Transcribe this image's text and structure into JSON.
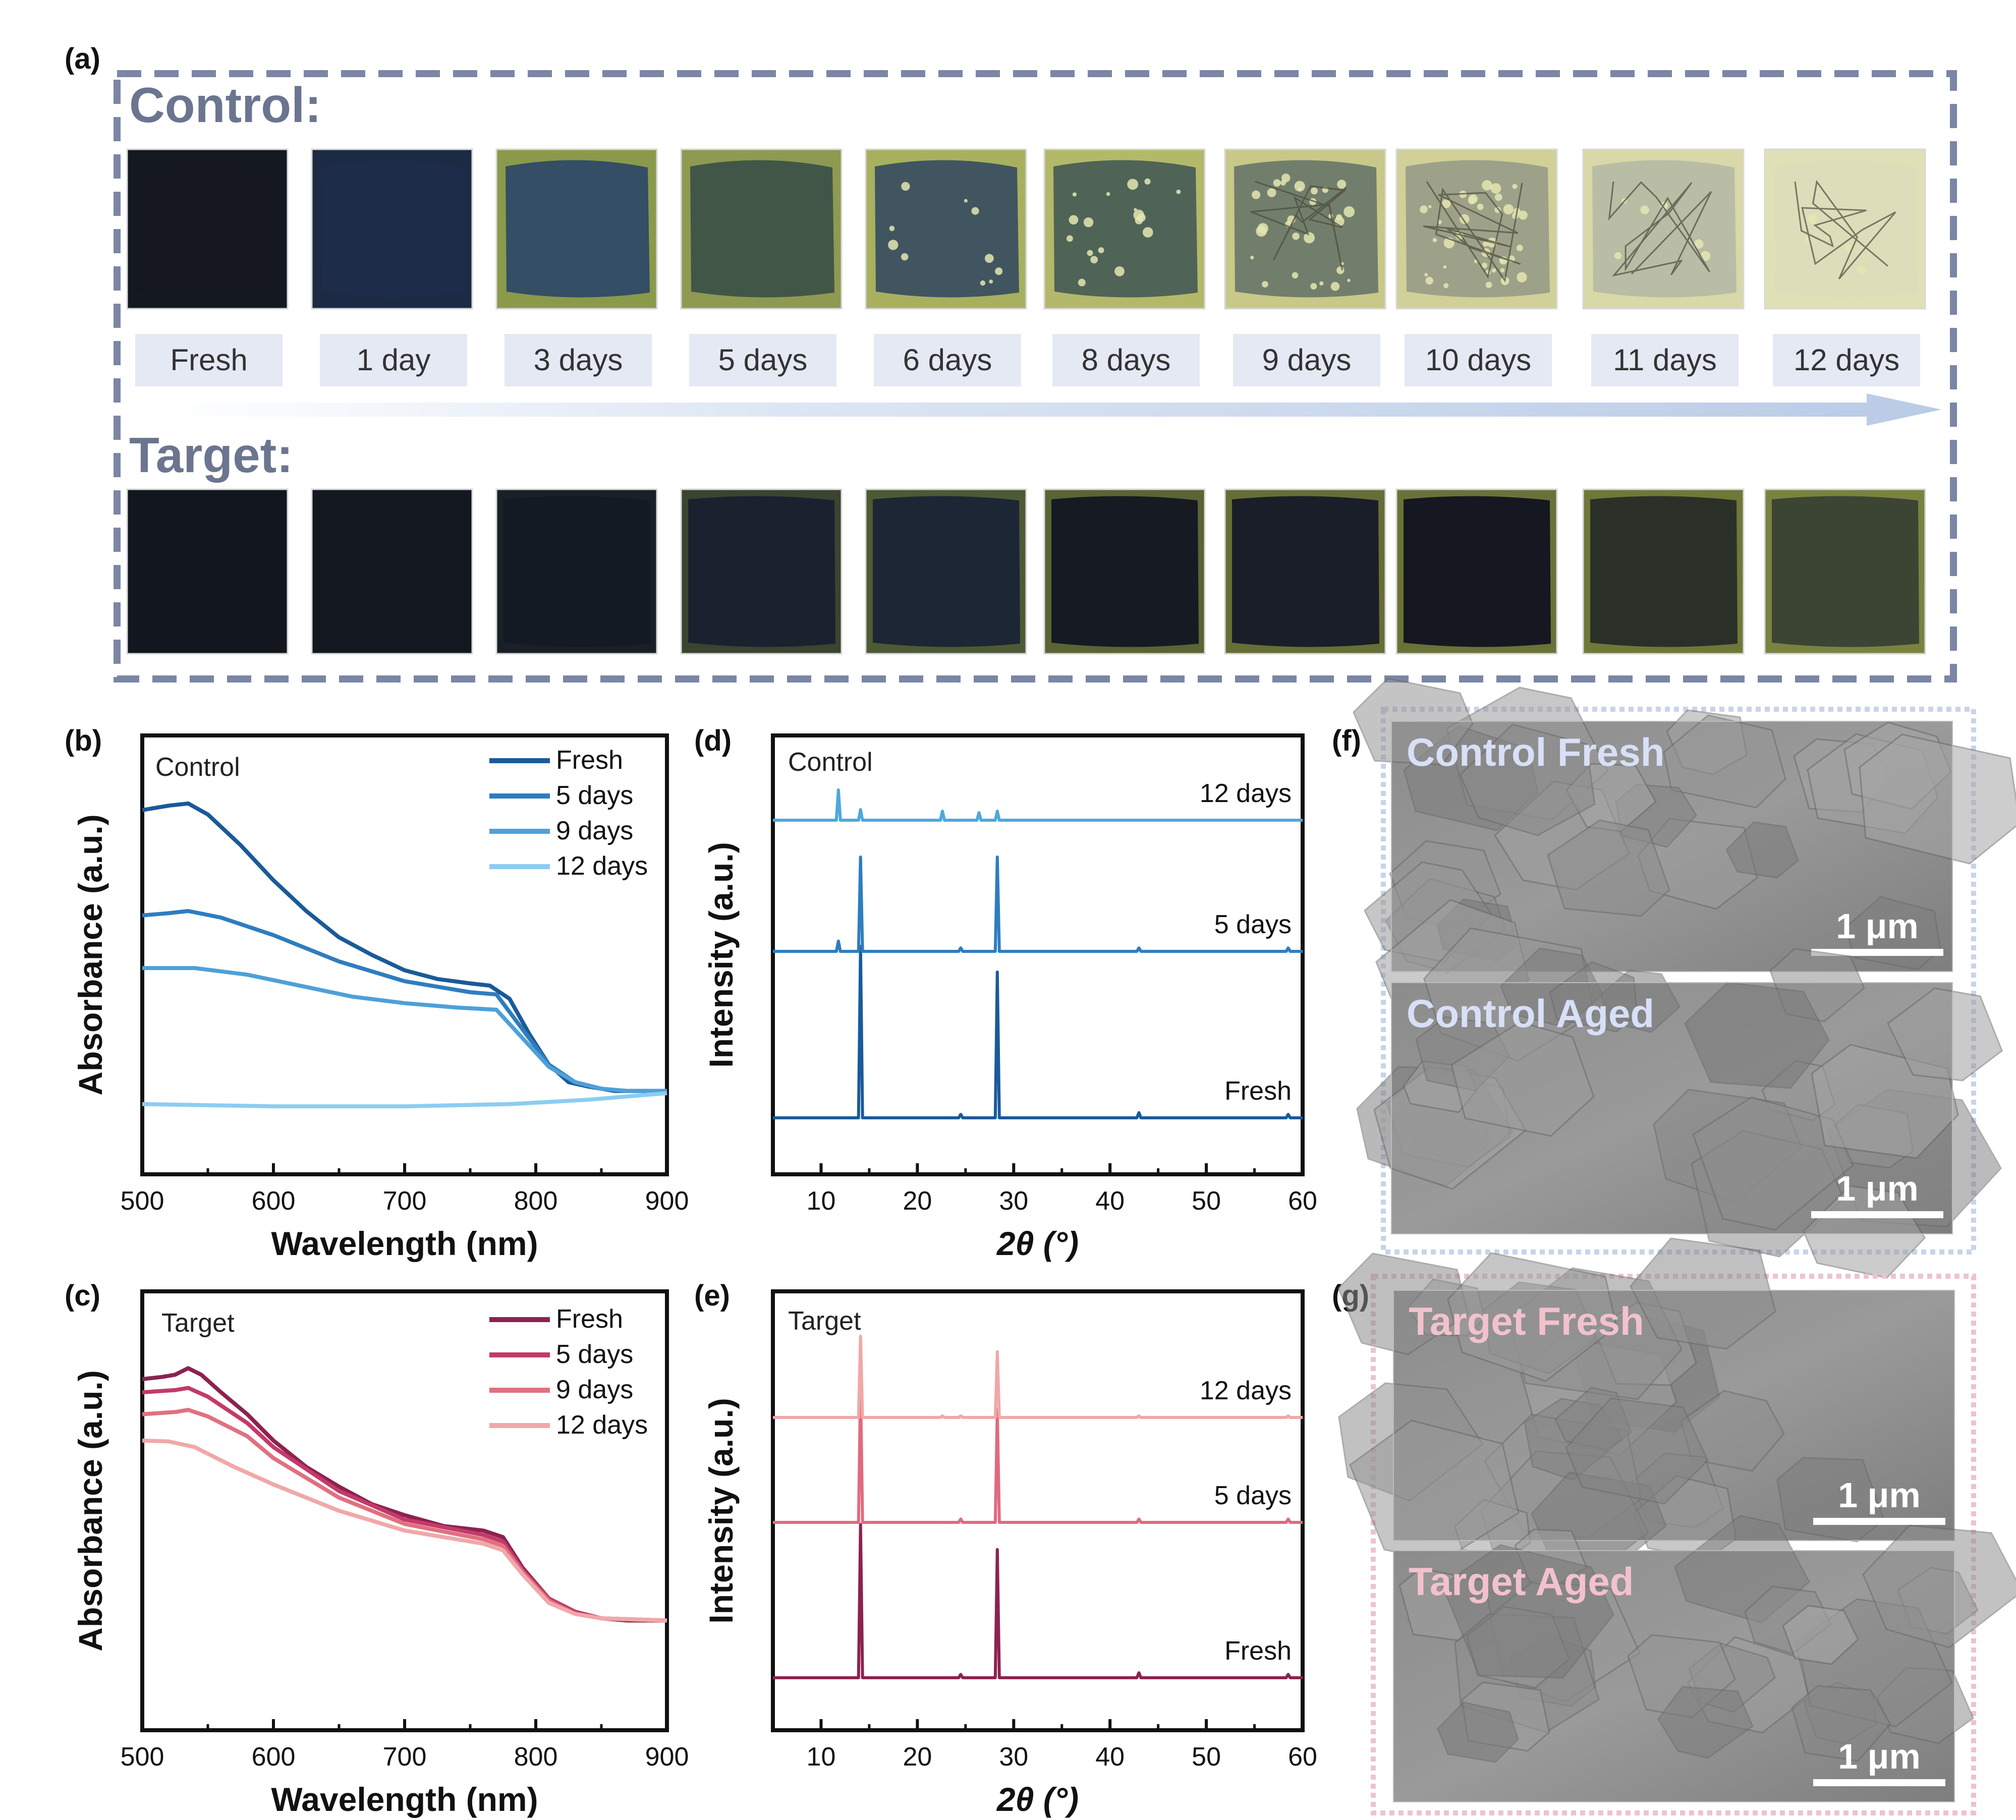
{
  "panel_a": {
    "letter": "(a)",
    "control_label": "Control:",
    "target_label": "Target:",
    "timepoints": [
      "Fresh",
      "1 day",
      "3 days",
      "5 days",
      "6 days",
      "8 days",
      "9 days",
      "10 days",
      "11 days",
      "12 days"
    ],
    "photo_colors": {
      "control": [
        {
          "bg": "#14181f",
          "film": "#14181f",
          "spots": 0,
          "crack": false
        },
        {
          "bg": "#1c2a44",
          "film": "#1c2c4a",
          "spots": 0,
          "crack": false
        },
        {
          "bg": "#8a9a4a",
          "film": "#2e4a66",
          "spots": 0,
          "crack": false
        },
        {
          "bg": "#8e9a52",
          "film": "#3e5248",
          "spots": 0,
          "crack": false
        },
        {
          "bg": "#a8b060",
          "film": "#3a5060",
          "spots": 10,
          "crack": false
        },
        {
          "bg": "#b4b86a",
          "film": "#4a5e56",
          "spots": 18,
          "crack": false
        },
        {
          "bg": "#c8c888",
          "film": "#6e7a6a",
          "spots": 30,
          "crack": true
        },
        {
          "bg": "#d0d098",
          "film": "#9a9e88",
          "spots": 40,
          "crack": true
        },
        {
          "bg": "#d8d8a8",
          "film": "#b8bca4",
          "spots": 6,
          "crack": true
        },
        {
          "bg": "#e0e0b6",
          "film": "#dcdcba",
          "spots": 4,
          "crack": true
        }
      ],
      "target": [
        {
          "bg": "#12161e",
          "film": "#12161e"
        },
        {
          "bg": "#131720",
          "film": "#131720"
        },
        {
          "bg": "#1a2028",
          "film": "#141a24"
        },
        {
          "bg": "#3a4430",
          "film": "#1a2230"
        },
        {
          "bg": "#4e5a34",
          "film": "#1c2634"
        },
        {
          "bg": "#5a6434",
          "film": "#161a22"
        },
        {
          "bg": "#666e36",
          "film": "#1a1e28"
        },
        {
          "bg": "#6a7238",
          "film": "#151820"
        },
        {
          "bg": "#707838",
          "film": "#2a3028"
        },
        {
          "bg": "#7a8240",
          "film": "#3c4434"
        }
      ]
    }
  },
  "panel_b": {
    "letter": "(b)",
    "inset_label": "Control",
    "chart_data": {
      "type": "line",
      "xlabel": "Wavelength (nm)",
      "ylabel": "Absorbance (a.u.)",
      "xlim": [
        500,
        900
      ],
      "ylim": [
        0,
        1
      ],
      "xticks": [
        500,
        600,
        700,
        800,
        900
      ],
      "legend_position": "top-right",
      "series": [
        {
          "name": "Fresh",
          "color": "#1a5a99",
          "points": [
            [
              500,
              0.83
            ],
            [
              510,
              0.835
            ],
            [
              520,
              0.84
            ],
            [
              535,
              0.845
            ],
            [
              550,
              0.82
            ],
            [
              575,
              0.75
            ],
            [
              600,
              0.67
            ],
            [
              625,
              0.6
            ],
            [
              650,
              0.54
            ],
            [
              675,
              0.5
            ],
            [
              700,
              0.465
            ],
            [
              725,
              0.445
            ],
            [
              750,
              0.435
            ],
            [
              765,
              0.43
            ],
            [
              780,
              0.4
            ],
            [
              795,
              0.32
            ],
            [
              810,
              0.25
            ],
            [
              825,
              0.21
            ],
            [
              840,
              0.2
            ],
            [
              860,
              0.19
            ],
            [
              880,
              0.19
            ],
            [
              900,
              0.19
            ]
          ]
        },
        {
          "name": "5 days",
          "color": "#2e7dbf",
          "points": [
            [
              500,
              0.59
            ],
            [
              520,
              0.595
            ],
            [
              535,
              0.6
            ],
            [
              560,
              0.585
            ],
            [
              600,
              0.545
            ],
            [
              650,
              0.485
            ],
            [
              700,
              0.44
            ],
            [
              750,
              0.415
            ],
            [
              770,
              0.41
            ],
            [
              790,
              0.33
            ],
            [
              810,
              0.25
            ],
            [
              830,
              0.21
            ],
            [
              850,
              0.195
            ],
            [
              870,
              0.19
            ],
            [
              900,
              0.19
            ]
          ]
        },
        {
          "name": "9 days",
          "color": "#4ea0d8",
          "points": [
            [
              500,
              0.47
            ],
            [
              540,
              0.47
            ],
            [
              580,
              0.455
            ],
            [
              620,
              0.43
            ],
            [
              660,
              0.405
            ],
            [
              700,
              0.39
            ],
            [
              740,
              0.38
            ],
            [
              770,
              0.375
            ],
            [
              790,
              0.31
            ],
            [
              810,
              0.245
            ],
            [
              830,
              0.21
            ],
            [
              850,
              0.195
            ],
            [
              870,
              0.19
            ],
            [
              900,
              0.19
            ]
          ]
        },
        {
          "name": "12 days",
          "color": "#8ccdf0",
          "points": [
            [
              500,
              0.16
            ],
            [
              600,
              0.155
            ],
            [
              700,
              0.155
            ],
            [
              780,
              0.16
            ],
            [
              840,
              0.17
            ],
            [
              880,
              0.18
            ],
            [
              900,
              0.185
            ]
          ]
        }
      ]
    }
  },
  "panel_c": {
    "letter": "(c)",
    "inset_label": "Target",
    "chart_data": {
      "type": "line",
      "xlabel": "Wavelength (nm)",
      "ylabel": "Absorbance (a.u.)",
      "xlim": [
        500,
        900
      ],
      "ylim": [
        0,
        1
      ],
      "xticks": [
        500,
        600,
        700,
        800,
        900
      ],
      "legend_position": "top-right",
      "series": [
        {
          "name": "Fresh",
          "color": "#8c2250",
          "points": [
            [
              500,
              0.8
            ],
            [
              515,
              0.805
            ],
            [
              525,
              0.81
            ],
            [
              535,
              0.825
            ],
            [
              545,
              0.81
            ],
            [
              560,
              0.77
            ],
            [
              580,
              0.72
            ],
            [
              600,
              0.66
            ],
            [
              625,
              0.6
            ],
            [
              650,
              0.555
            ],
            [
              675,
              0.515
            ],
            [
              700,
              0.49
            ],
            [
              730,
              0.465
            ],
            [
              760,
              0.455
            ],
            [
              775,
              0.44
            ],
            [
              790,
              0.37
            ],
            [
              810,
              0.3
            ],
            [
              830,
              0.27
            ],
            [
              850,
              0.255
            ],
            [
              870,
              0.25
            ],
            [
              900,
              0.25
            ]
          ]
        },
        {
          "name": "5 days",
          "color": "#c43a6a",
          "points": [
            [
              500,
              0.77
            ],
            [
              525,
              0.775
            ],
            [
              535,
              0.78
            ],
            [
              550,
              0.76
            ],
            [
              580,
              0.7
            ],
            [
              600,
              0.645
            ],
            [
              650,
              0.545
            ],
            [
              700,
              0.48
            ],
            [
              760,
              0.445
            ],
            [
              775,
              0.43
            ],
            [
              790,
              0.365
            ],
            [
              810,
              0.3
            ],
            [
              830,
              0.27
            ],
            [
              850,
              0.255
            ],
            [
              900,
              0.25
            ]
          ]
        },
        {
          "name": "9 days",
          "color": "#e07080",
          "points": [
            [
              500,
              0.72
            ],
            [
              525,
              0.725
            ],
            [
              535,
              0.73
            ],
            [
              550,
              0.715
            ],
            [
              580,
              0.67
            ],
            [
              600,
              0.62
            ],
            [
              650,
              0.53
            ],
            [
              700,
              0.47
            ],
            [
              760,
              0.435
            ],
            [
              775,
              0.42
            ],
            [
              790,
              0.36
            ],
            [
              810,
              0.295
            ],
            [
              830,
              0.265
            ],
            [
              850,
              0.255
            ],
            [
              900,
              0.25
            ]
          ]
        },
        {
          "name": "12 days",
          "color": "#f0a8a8",
          "points": [
            [
              500,
              0.66
            ],
            [
              520,
              0.658
            ],
            [
              540,
              0.645
            ],
            [
              570,
              0.6
            ],
            [
              600,
              0.56
            ],
            [
              650,
              0.5
            ],
            [
              700,
              0.455
            ],
            [
              760,
              0.425
            ],
            [
              775,
              0.41
            ],
            [
              790,
              0.355
            ],
            [
              810,
              0.29
            ],
            [
              830,
              0.265
            ],
            [
              850,
              0.255
            ],
            [
              900,
              0.25
            ]
          ]
        }
      ]
    }
  },
  "panel_d": {
    "letter": "(d)",
    "inset_label": "Control",
    "chart_data": {
      "type": "line",
      "xlabel": "2θ (°)",
      "ylabel": "Intensity (a.u.)",
      "xlim": [
        5,
        60
      ],
      "xticks": [
        10,
        20,
        30,
        40,
        50,
        60
      ],
      "series": [
        {
          "name": "Fresh",
          "color": "#1a5a99",
          "peaks": [
            [
              14.1,
              1.0
            ],
            [
              24.5,
              0.02
            ],
            [
              28.3,
              0.85
            ],
            [
              43.0,
              0.03
            ],
            [
              58.5,
              0.02
            ]
          ]
        },
        {
          "name": "5 days",
          "color": "#2e7dbf",
          "peaks": [
            [
              11.8,
              0.06
            ],
            [
              14.1,
              0.55
            ],
            [
              24.5,
              0.02
            ],
            [
              28.3,
              0.55
            ],
            [
              43.0,
              0.02
            ],
            [
              58.5,
              0.02
            ]
          ]
        },
        {
          "name": "12 days",
          "color": "#4ea8dc",
          "peaks": [
            [
              11.8,
              0.2
            ],
            [
              14.1,
              0.07
            ],
            [
              22.6,
              0.06
            ],
            [
              26.4,
              0.05
            ],
            [
              28.3,
              0.06
            ]
          ]
        }
      ]
    }
  },
  "panel_e": {
    "letter": "(e)",
    "inset_label": "Target",
    "chart_data": {
      "type": "line",
      "xlabel": "2θ (°)",
      "ylabel": "Intensity (a.u.)",
      "xlim": [
        5,
        60
      ],
      "xticks": [
        10,
        20,
        30,
        40,
        50,
        60
      ],
      "series": [
        {
          "name": "Fresh",
          "color": "#8c2250",
          "peaks": [
            [
              14.1,
              0.92
            ],
            [
              24.5,
              0.02
            ],
            [
              28.3,
              0.77
            ],
            [
              43.0,
              0.03
            ],
            [
              58.5,
              0.02
            ]
          ]
        },
        {
          "name": "5 days",
          "color": "#e06a80",
          "peaks": [
            [
              14.1,
              0.83
            ],
            [
              24.5,
              0.02
            ],
            [
              28.3,
              0.68
            ],
            [
              43.0,
              0.02
            ],
            [
              58.5,
              0.02
            ]
          ]
        },
        {
          "name": "12 days",
          "color": "#f0a8a8",
          "peaks": [
            [
              14.1,
              0.52
            ],
            [
              22.6,
              0.01
            ],
            [
              24.5,
              0.01
            ],
            [
              28.3,
              0.42
            ],
            [
              43.0,
              0.01
            ],
            [
              58.5,
              0.01
            ]
          ]
        }
      ]
    }
  },
  "panel_f": {
    "letter": "(f)",
    "images": [
      {
        "label": "Control Fresh",
        "scale": "1 μm"
      },
      {
        "label": "Control Aged",
        "scale": "1 μm"
      }
    ]
  },
  "panel_g": {
    "letter": "(g)",
    "images": [
      {
        "label": "Target Fresh",
        "scale": "1 μm"
      },
      {
        "label": "Target Aged",
        "scale": "1 μm"
      }
    ]
  }
}
